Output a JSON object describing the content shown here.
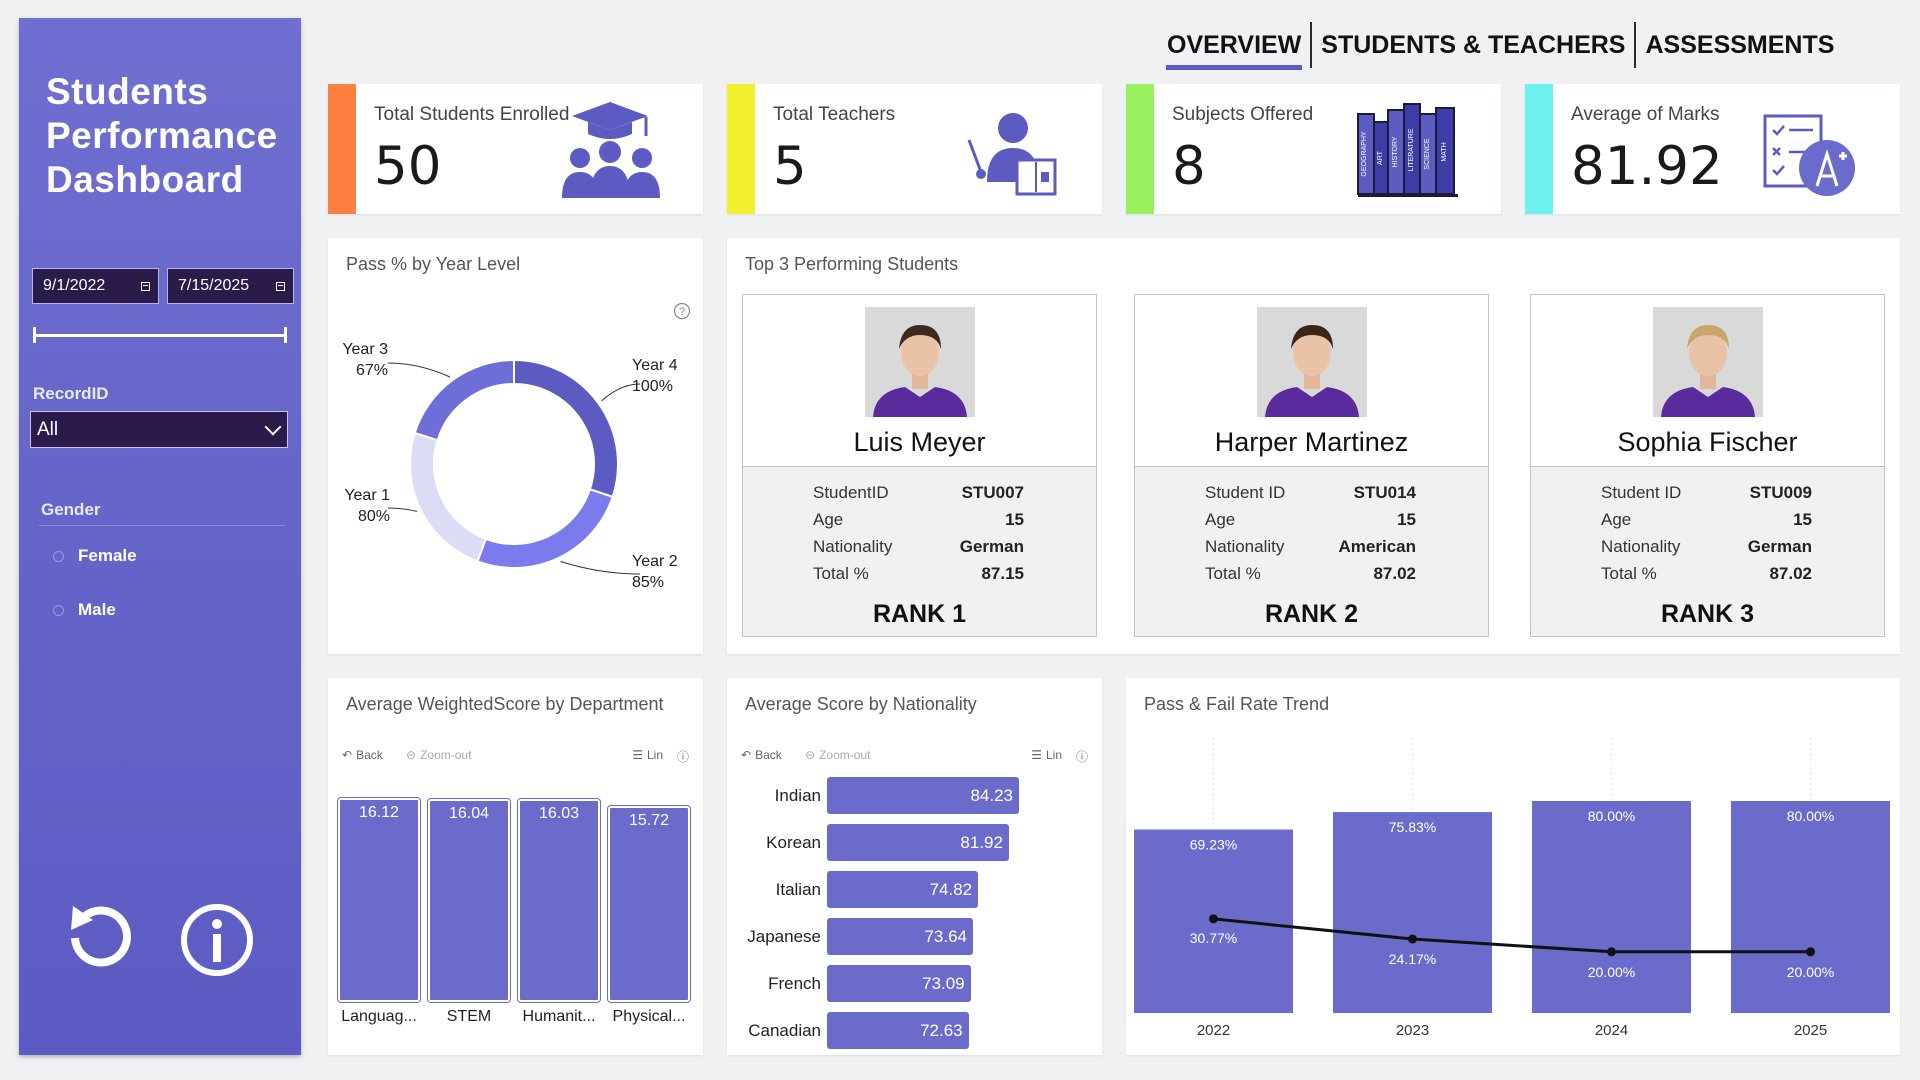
{
  "sidebar": {
    "title_line1": "Students",
    "title_line2": "Performance",
    "title_line3": "Dashboard",
    "date_start": "9/1/2022",
    "date_end": "7/15/2025",
    "record_label": "RecordID",
    "record_value": "All",
    "gender_label": "Gender",
    "gender_options": [
      "Female",
      "Male"
    ],
    "reset_icon": "reset-icon",
    "info_icon": "info-icon"
  },
  "tabs": [
    "OVERVIEW",
    "STUDENTS & TEACHERS",
    "ASSESSMENTS"
  ],
  "kpis": [
    {
      "label": "Total Students Enrolled",
      "value": "50",
      "color": "#ff7f41",
      "icon": "students-icon"
    },
    {
      "label": "Total Teachers",
      "value": "5",
      "color": "#f2ef2e",
      "icon": "teacher-icon"
    },
    {
      "label": "Subjects Offered",
      "value": "8",
      "color": "#97f25d",
      "icon": "books-icon"
    },
    {
      "label": "Average of Marks",
      "value": "81.92",
      "color": "#6ef2ef",
      "icon": "test-icon"
    }
  ],
  "books": [
    "GEOGRAPHY",
    "ART",
    "HISTORY",
    "LITERATURE",
    "SCIENCE",
    "MATH"
  ],
  "donut": {
    "title": "Pass % by Year Level",
    "slices": [
      {
        "label": "Year 4",
        "value": "100%",
        "pct": 100,
        "color": "#5b5bc2"
      },
      {
        "label": "Year 2",
        "value": "85%",
        "pct": 85,
        "color": "#7b7bee"
      },
      {
        "label": "Year 1",
        "value": "80%",
        "pct": 80,
        "color": "#dcdcf6"
      },
      {
        "label": "Year 3",
        "value": "67%",
        "pct": 67,
        "color": "#6e6ed8"
      }
    ]
  },
  "top_students": {
    "title": "Top 3 Performing Students",
    "students": [
      {
        "name": "Luis Meyer",
        "id_label": "StudentID",
        "id": "STU007",
        "age_label": "Age",
        "age": "15",
        "nat_label": "Nationality",
        "nationality": "German",
        "total_label": "Total %",
        "total": "87.15",
        "rank": "RANK 1",
        "hair": "#3a2a20"
      },
      {
        "name": "Harper Martinez",
        "id_label": "Student ID",
        "id": "STU014",
        "age_label": "Age",
        "age": "15",
        "nat_label": "Nationality",
        "nationality": "American",
        "total_label": "Total %",
        "total": "87.02",
        "rank": "RANK 2",
        "hair": "#3b2418"
      },
      {
        "name": "Sophia Fischer",
        "id_label": "Student ID",
        "id": "STU009",
        "age_label": "Age",
        "age": "15",
        "nat_label": "Nationality",
        "nationality": "German",
        "total_label": "Total %",
        "total": "87.02",
        "rank": "RANK 3",
        "hair": "#c9a56a"
      }
    ]
  },
  "toolbar": {
    "back": "Back",
    "zoom": "Zoom-out",
    "lin": "Lin"
  },
  "dept_chart": {
    "title": "Average WeightedScore by Department",
    "chart_data": {
      "type": "bar",
      "categories": [
        "Languag...",
        "STEM",
        "Humanit...",
        "Physical..."
      ],
      "values": [
        16.12,
        16.04,
        16.03,
        15.72
      ],
      "labels": [
        "16.12",
        "16.04",
        "16.03",
        "15.72"
      ]
    }
  },
  "nat_chart": {
    "title": "Average Score by Nationality",
    "chart_data": {
      "type": "bar",
      "orientation": "horizontal",
      "categories": [
        "Indian",
        "Korean",
        "Italian",
        "Japanese",
        "French",
        "Canadian"
      ],
      "values": [
        84.23,
        81.92,
        74.82,
        73.64,
        73.09,
        72.63
      ],
      "labels": [
        "84.23",
        "81.92",
        "74.82",
        "73.64",
        "73.09",
        "72.63"
      ]
    }
  },
  "trend_chart": {
    "title": "Pass & Fail Rate Trend",
    "chart_data": {
      "type": "bar",
      "categories": [
        "2022",
        "2023",
        "2024",
        "2025"
      ],
      "series": [
        {
          "values": [
            69.23,
            75.83,
            80.0,
            80.0
          ],
          "labels": [
            "69.23%",
            "75.83%",
            "80.00%",
            "80.00%"
          ]
        },
        {
          "values": [
            30.77,
            24.17,
            20.0,
            20.0
          ],
          "labels": [
            "30.77%",
            "24.17%",
            "20.00%",
            "20.00%"
          ]
        }
      ]
    }
  }
}
